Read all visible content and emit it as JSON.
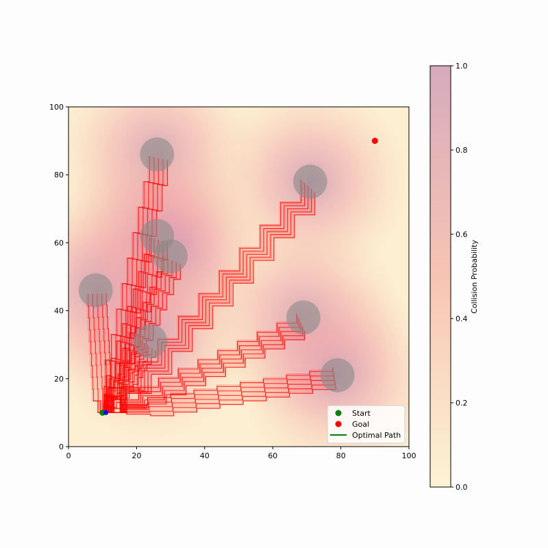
{
  "chart_data": {
    "type": "scatter",
    "title": "",
    "xlabel": "",
    "ylabel": "",
    "xlim": [
      0,
      100
    ],
    "ylim": [
      0,
      100
    ],
    "x_ticks": [
      "0",
      "20",
      "40",
      "60",
      "80",
      "100"
    ],
    "y_ticks": [
      "0",
      "20",
      "40",
      "60",
      "80",
      "100"
    ],
    "grid": false,
    "legend_placement": "bottom-right",
    "legend": [
      {
        "label": "Start",
        "marker": "dot",
        "color": "#008000"
      },
      {
        "label": "Goal",
        "marker": "dot",
        "color": "#ff0000"
      },
      {
        "label": "Optimal Path",
        "marker": "line",
        "color": "#008000"
      }
    ],
    "start": {
      "x": 10,
      "y": 10
    },
    "goal": {
      "x": 90,
      "y": 90
    },
    "current_position": {
      "x": 11,
      "y": 10
    },
    "obstacles": [
      {
        "x": 26,
        "y": 86,
        "r": 5
      },
      {
        "x": 71,
        "y": 78,
        "r": 5
      },
      {
        "x": 26,
        "y": 62,
        "r": 5
      },
      {
        "x": 30,
        "y": 56,
        "r": 5
      },
      {
        "x": 8,
        "y": 46,
        "r": 5
      },
      {
        "x": 69,
        "y": 38,
        "r": 5
      },
      {
        "x": 24,
        "y": 31,
        "r": 5
      },
      {
        "x": 79,
        "y": 21,
        "r": 5
      }
    ],
    "explored_paths": [
      {
        "end_x": 26,
        "end_y": 85
      },
      {
        "end_x": 70,
        "end_y": 77
      },
      {
        "end_x": 26,
        "end_y": 61
      },
      {
        "end_x": 30,
        "end_y": 55
      },
      {
        "end_x": 8,
        "end_y": 45
      },
      {
        "end_x": 68,
        "end_y": 37
      },
      {
        "end_x": 23,
        "end_y": 30
      },
      {
        "end_x": 78,
        "end_y": 21
      }
    ],
    "colorbar": {
      "label": "Collision Probability",
      "range": [
        0,
        1
      ],
      "ticks": [
        "0.0",
        "0.2",
        "0.4",
        "0.6",
        "0.8",
        "1.0"
      ],
      "color_low": "#fdf3d4",
      "color_mid": "#f7c4b4",
      "color_high": "#d7aabc"
    },
    "colors": {
      "path": "#ff0000",
      "obstacle": "#8a8a8a",
      "start": "#008000",
      "goal": "#ff0000",
      "current": "#0000ff",
      "optimal": "#008000"
    }
  }
}
